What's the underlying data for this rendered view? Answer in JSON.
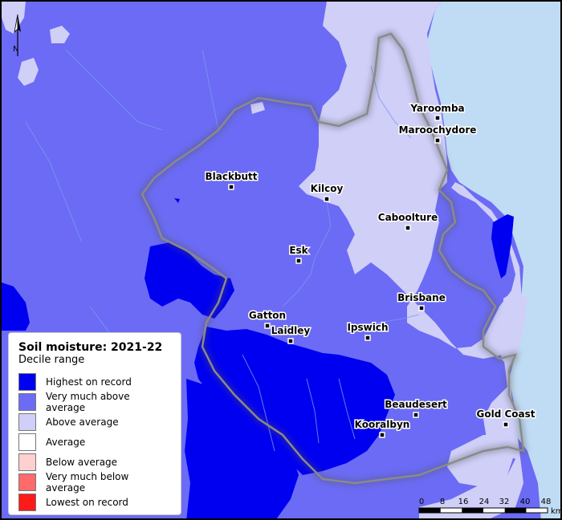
{
  "legend": {
    "title": "Soil moisture: 2021-22",
    "subtitle": "Decile range",
    "items": [
      {
        "label": "Highest on record",
        "color": "#0000f0"
      },
      {
        "label": "Very much above average",
        "color": "#6b6bf5"
      },
      {
        "label": "Above average",
        "color": "#cfcff8"
      },
      {
        "label": "Average",
        "color": "#ffffff"
      },
      {
        "label": "Below average",
        "color": "#ffd0d0"
      },
      {
        "label": "Very much below average",
        "color": "#ff6a6a"
      },
      {
        "label": "Lowest on record",
        "color": "#ff1a1a"
      }
    ]
  },
  "places": [
    {
      "name": "Yaroomba"
    },
    {
      "name": "Maroochydore"
    },
    {
      "name": "Blackbutt"
    },
    {
      "name": "Kilcoy"
    },
    {
      "name": "Caboolture"
    },
    {
      "name": "Esk"
    },
    {
      "name": "Brisbane"
    },
    {
      "name": "Gatton"
    },
    {
      "name": "Laidley"
    },
    {
      "name": "Ipswich"
    },
    {
      "name": "Beaudesert"
    },
    {
      "name": "Gold Coast"
    },
    {
      "name": "Kooralbyn"
    }
  ],
  "scale_bar": {
    "ticks": [
      "0",
      "8",
      "16",
      "24",
      "32",
      "40",
      "48"
    ],
    "unit": "km"
  },
  "north_arrow": {
    "label": "N",
    "icon": "north-arrow-icon"
  },
  "colors": {
    "sea": "#c0dcf5",
    "very_much_above": "#6b6bf5",
    "highest": "#0000f0",
    "above": "#cfcff8",
    "boundary": "#8a8a8a",
    "river": "#7a9be8"
  }
}
